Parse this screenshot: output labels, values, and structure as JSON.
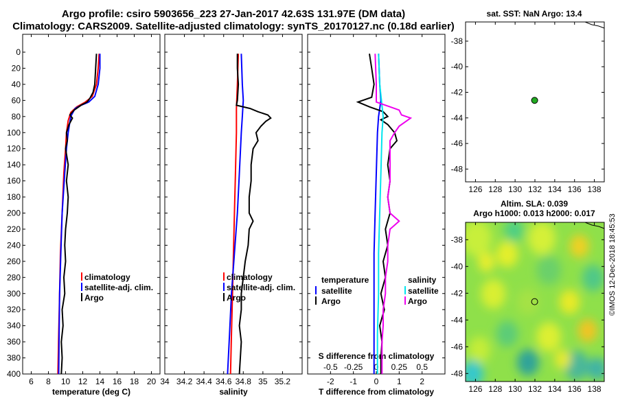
{
  "header": {
    "line1": "Argo profile: csiro 5903656_223 27-Jan-2017 42.63S 131.97E (DM data)",
    "line2": "Climatology: CARS2009. Satellite-adjusted climatology: synTS_20170127.nc (0.18d earlier)"
  },
  "footer": {
    "stamp": "©IMOS 12-Dec-2018 18:45:53"
  },
  "colors": {
    "clim": "#ff0000",
    "sat": "#0000ff",
    "argo": "#000000",
    "sat_s": "#00e5ee",
    "argo_s": "#ee00ee",
    "marker": "#22aa22"
  },
  "chart_data": [
    {
      "id": "temperature",
      "type": "line",
      "xlabel": "temperature (deg C)",
      "ylabel": "",
      "xlim": [
        5,
        21
      ],
      "ylim": [
        400,
        0
      ],
      "xticks": [
        "6",
        "8",
        "10",
        "12",
        "14",
        "16",
        "18",
        "20"
      ],
      "xtick_values": [
        6,
        8,
        10,
        12,
        14,
        16,
        18,
        20
      ],
      "yticks": [
        "0",
        "20",
        "40",
        "60",
        "80",
        "100",
        "120",
        "140",
        "160",
        "180",
        "200",
        "220",
        "240",
        "260",
        "280",
        "300",
        "320",
        "340",
        "360",
        "380",
        "400"
      ],
      "legend": [
        "climatology",
        "satellite-adj. clim.",
        "Argo"
      ],
      "series": [
        {
          "name": "climatology",
          "color": "red",
          "depth": [
            2,
            20,
            40,
            55,
            62,
            68,
            75,
            85,
            100,
            120,
            150,
            200,
            250,
            300,
            350,
            400
          ],
          "values": [
            13.9,
            13.8,
            13.6,
            13.1,
            12.3,
            11.3,
            10.6,
            10.3,
            10.1,
            10.0,
            9.8,
            9.6,
            9.4,
            9.3,
            9.2,
            9.1
          ]
        },
        {
          "name": "satellite-adj. clim.",
          "color": "blue",
          "depth": [
            2,
            20,
            40,
            55,
            62,
            66,
            70,
            80,
            100,
            120,
            150,
            200,
            250,
            300,
            350,
            400
          ],
          "values": [
            14.0,
            14.0,
            13.8,
            13.4,
            12.7,
            11.8,
            11.1,
            10.6,
            10.3,
            10.1,
            9.9,
            9.6,
            9.45,
            9.3,
            9.25,
            9.2
          ]
        },
        {
          "name": "Argo",
          "color": "black",
          "depth": [
            2,
            20,
            40,
            50,
            58,
            62,
            66,
            72,
            78,
            82,
            90,
            100,
            110,
            120,
            140,
            160,
            180,
            200,
            220,
            240,
            260,
            280,
            300,
            320,
            340,
            360,
            380,
            400
          ],
          "values": [
            13.6,
            13.5,
            13.4,
            13.2,
            12.8,
            12.5,
            11.8,
            11.0,
            10.5,
            10.8,
            10.4,
            10.1,
            10.2,
            10.0,
            10.3,
            10.1,
            10.3,
            10.2,
            10.0,
            9.9,
            10.0,
            9.8,
            9.9,
            9.6,
            9.7,
            9.5,
            9.6,
            9.5
          ]
        }
      ]
    },
    {
      "id": "salinity",
      "type": "line",
      "xlabel": "salinity",
      "xlim": [
        34.0,
        35.4
      ],
      "ylim": [
        400,
        0
      ],
      "xticks": [
        "34",
        "34.2",
        "34.4",
        "34.6",
        "34.8",
        "35",
        "35.2"
      ],
      "xtick_values": [
        34.0,
        34.2,
        34.4,
        34.6,
        34.8,
        35.0,
        35.2
      ],
      "legend": [
        "climatology",
        "satellite-adj. clim.",
        "Argo"
      ],
      "series": [
        {
          "name": "climatology",
          "color": "red",
          "depth": [
            2,
            40,
            70,
            100,
            150,
            200,
            250,
            300,
            350,
            400
          ],
          "values": [
            34.75,
            34.74,
            34.73,
            34.73,
            34.72,
            34.71,
            34.7,
            34.69,
            34.68,
            34.67
          ]
        },
        {
          "name": "satellite-adj. clim.",
          "color": "blue",
          "depth": [
            2,
            40,
            60,
            80,
            100,
            150,
            200,
            250,
            300,
            350,
            400
          ],
          "values": [
            34.78,
            34.79,
            34.8,
            34.79,
            34.78,
            34.76,
            34.74,
            34.71,
            34.68,
            34.66,
            34.64
          ]
        },
        {
          "name": "Argo",
          "color": "black",
          "depth": [
            2,
            20,
            40,
            60,
            66,
            70,
            74,
            78,
            82,
            86,
            92,
            100,
            110,
            120,
            140,
            160,
            180,
            200,
            210,
            220,
            240,
            260,
            280,
            300,
            320,
            340,
            360,
            380,
            400
          ],
          "values": [
            34.74,
            34.74,
            34.75,
            34.74,
            34.73,
            34.87,
            34.95,
            35.05,
            35.08,
            35.03,
            34.98,
            34.93,
            34.95,
            34.9,
            34.88,
            34.88,
            34.86,
            34.86,
            34.9,
            34.86,
            34.85,
            34.82,
            34.8,
            34.78,
            34.78,
            34.76,
            34.78,
            34.77,
            34.76
          ]
        }
      ]
    },
    {
      "id": "difference",
      "type": "line",
      "xlabel": "T difference from climatology",
      "xlabel_top": "S difference from climatology",
      "xlim": [
        -3,
        3
      ],
      "ylim": [
        400,
        0
      ],
      "xticks": [
        "-2",
        "-1",
        "0",
        "1",
        "2"
      ],
      "xtick_values": [
        -2,
        -1,
        0,
        1,
        2
      ],
      "sticks": [
        "-0.5",
        "-0.25",
        "0",
        "0.25",
        "0.5"
      ],
      "stick_values": [
        -2,
        -1,
        0,
        1,
        2
      ],
      "legend_left_title": "temperature",
      "legend_left": [
        "satellite",
        "Argo"
      ],
      "legend_right_title": "salinity",
      "legend_right": [
        "satellite",
        "Argo"
      ],
      "series": [
        {
          "name": "temperature satellite",
          "color": "blue",
          "depth": [
            2,
            40,
            60,
            80,
            100,
            150,
            200,
            250,
            300,
            350,
            400
          ],
          "values": [
            0.1,
            0.15,
            0.2,
            0.1,
            0.05,
            0.0,
            -0.05,
            -0.1,
            -0.1,
            -0.1,
            -0.1
          ]
        },
        {
          "name": "temperature Argo",
          "color": "black",
          "depth": [
            2,
            20,
            40,
            56,
            62,
            68,
            74,
            80,
            84,
            90,
            100,
            110,
            120,
            140,
            160,
            180,
            200,
            220,
            240,
            260,
            280,
            300,
            320,
            340,
            360,
            380,
            400
          ],
          "values": [
            -0.3,
            -0.2,
            -0.1,
            -0.2,
            -0.8,
            -0.3,
            0.3,
            0.5,
            0.2,
            0.5,
            0.8,
            0.9,
            0.6,
            0.5,
            0.6,
            0.5,
            0.6,
            0.4,
            0.5,
            0.3,
            0.4,
            0.2,
            0.35,
            0.15,
            0.25,
            0.2,
            0.2
          ]
        },
        {
          "name": "salinity satellite",
          "color": "cyan",
          "depth": [
            2,
            40,
            80,
            100,
            150,
            200,
            250,
            300,
            350,
            400
          ],
          "values": [
            0.1,
            0.15,
            0.3,
            0.25,
            0.2,
            0.15,
            0.1,
            0.1,
            0.05,
            0.05
          ]
        },
        {
          "name": "salinity Argo",
          "color": "magenta",
          "depth": [
            2,
            40,
            62,
            68,
            72,
            78,
            82,
            86,
            92,
            100,
            110,
            120,
            140,
            160,
            180,
            200,
            210,
            220,
            240,
            260,
            280,
            300,
            320,
            340,
            360,
            380,
            400
          ],
          "values": [
            -0.05,
            0.0,
            0.0,
            0.6,
            1.0,
            1.1,
            1.5,
            1.3,
            1.0,
            0.8,
            0.6,
            0.6,
            0.6,
            0.6,
            0.5,
            0.6,
            1.0,
            0.6,
            0.5,
            0.5,
            0.4,
            0.4,
            0.3,
            0.3,
            0.25,
            0.25,
            0.25
          ]
        }
      ]
    }
  ],
  "sst_map": {
    "title": "sat. SST: NaN Argo: 13.4",
    "xticks": [
      "126",
      "128",
      "130",
      "132",
      "134",
      "136",
      "138"
    ],
    "xtick_values": [
      126,
      128,
      130,
      132,
      134,
      136,
      138
    ],
    "yticks": [
      "-38",
      "-40",
      "-42",
      "-44",
      "-46",
      "-48"
    ],
    "ytick_values": [
      -38,
      -40,
      -42,
      -44,
      -46,
      -48
    ],
    "xlim": [
      125,
      139
    ],
    "ylim": [
      -49,
      -36.5
    ],
    "argo_lon": 131.97,
    "argo_lat": -42.63
  },
  "sla_map": {
    "title1": "Altim. SLA: 0.039",
    "title2": "Argo h1000: 0.013 h2000: 0.017",
    "xticks": [
      "126",
      "128",
      "130",
      "132",
      "134",
      "136",
      "138"
    ],
    "xtick_values": [
      126,
      128,
      130,
      132,
      134,
      136,
      138
    ],
    "yticks": [
      "-38",
      "-40",
      "-42",
      "-44",
      "-46",
      "-48"
    ],
    "ytick_values": [
      -38,
      -40,
      -42,
      -44,
      -46,
      -48
    ],
    "xlim": [
      125,
      139
    ],
    "ylim": [
      -48.6,
      -36.7
    ],
    "argo_lon": 131.97,
    "argo_lat": -42.63
  }
}
